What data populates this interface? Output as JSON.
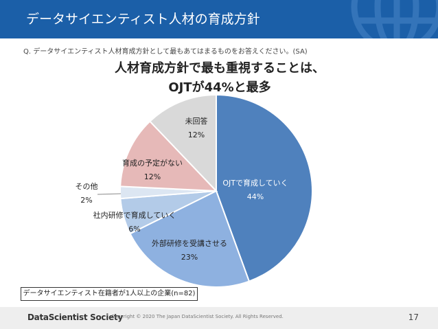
{
  "header": {
    "title": "データサイエンティスト人材の育成方針"
  },
  "question": "Q. データサイエンティスト人材育成方針として最もあてはまるものをお答えください。(SA)",
  "chart_data": {
    "type": "pie",
    "title_lines": [
      "人材育成方針で最も重視することは、",
      "OJTが44%と最多"
    ],
    "slices": [
      {
        "label": "OJTで育成していく",
        "value": 44,
        "value_label": "44%",
        "color": "#4f81bd"
      },
      {
        "label": "外部研修を受講させる",
        "value": 23,
        "value_label": "23%",
        "color": "#8eb1e0"
      },
      {
        "label": "社内研修で育成していく",
        "value": 6,
        "value_label": "6%",
        "color": "#b3cbe8"
      },
      {
        "label": "その他",
        "value": 2,
        "value_label": "2%",
        "color": "#dce6f2"
      },
      {
        "label": "育成の予定がない",
        "value": 12,
        "value_label": "12%",
        "color": "#e6b9b8"
      },
      {
        "label": "未回答",
        "value": 12,
        "value_label": "12%",
        "color": "#d9d9d9"
      }
    ],
    "start": "top",
    "direction": "clockwise"
  },
  "note": "データサイエンティスト在籍者が1人以上の企業(n=82)",
  "footer": {
    "logo": "DataScientist Society",
    "copyright": "Copyright © 2020 The Japan DataScientist Society. All Rights Reserved.",
    "page": "17"
  }
}
